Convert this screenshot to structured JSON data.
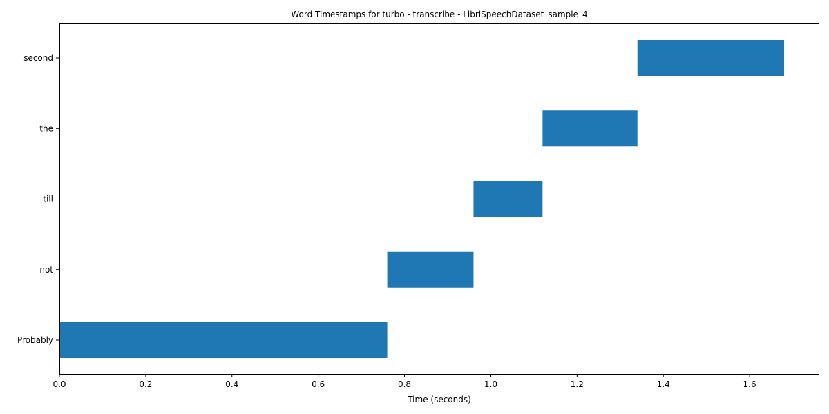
{
  "chart_data": {
    "type": "bar",
    "orientation": "horizontal",
    "title": "Word Timestamps for turbo - transcribe - LibriSpeechDataset_sample_4",
    "xlabel": "Time (seconds)",
    "ylabel": "",
    "xlim": [
      0,
      1.76
    ],
    "xticks": [
      0.0,
      0.2,
      0.4,
      0.6,
      0.8,
      1.0,
      1.2,
      1.4,
      1.6
    ],
    "xtick_labels": [
      "0.0",
      "0.2",
      "0.4",
      "0.6",
      "0.8",
      "1.0",
      "1.2",
      "1.4",
      "1.6"
    ],
    "grid": false,
    "categories": [
      " Probably",
      " not",
      " till",
      " the",
      " second"
    ],
    "series": [
      {
        "color": "#1f77b4",
        "start": [
          0.0,
          0.76,
          0.96,
          1.12,
          1.34
        ],
        "end": [
          0.76,
          0.96,
          1.12,
          1.34,
          1.68
        ]
      }
    ]
  }
}
